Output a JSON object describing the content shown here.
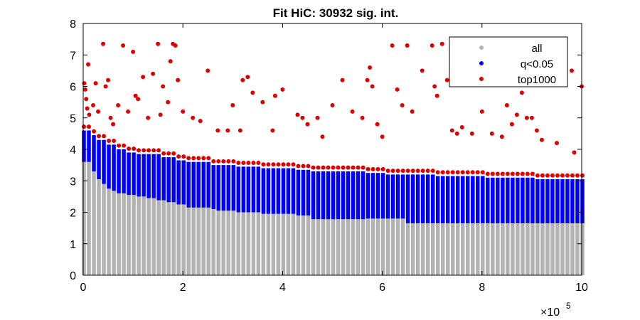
{
  "chart_data": {
    "type": "scatter",
    "title": "Fit HiC: 30932 sig. int.",
    "xlabel": "",
    "ylabel": "",
    "xlim": [
      0,
      1000000
    ],
    "ylim": [
      0,
      8
    ],
    "x_ticks": [
      0,
      200000,
      400000,
      600000,
      800000,
      1000000
    ],
    "x_tick_labels": [
      "0",
      "2",
      "4",
      "6",
      "8",
      "10"
    ],
    "x_exponent_base": "×10",
    "x_exponent_power": "5",
    "y_ticks": [
      0,
      1,
      2,
      3,
      4,
      5,
      6,
      7,
      8
    ],
    "y_tick_labels": [
      "0",
      "1",
      "2",
      "3",
      "4",
      "5",
      "6",
      "7",
      "8"
    ],
    "grid": false,
    "legend_position": "top-right",
    "series": [
      {
        "name": "all",
        "color": "#b3b3b3",
        "description_of_values": "distance bins every 10000 units from 0 to 1000000; each bin spans y from 0 up to the significance threshold",
        "bin_width": 10000,
        "values": [
          [
            0,
            3.6
          ],
          [
            10000,
            3.3
          ],
          [
            20000,
            3.05
          ],
          [
            30000,
            2.9
          ],
          [
            40000,
            2.75
          ],
          [
            50000,
            2.68
          ],
          [
            60000,
            2.6
          ],
          [
            80000,
            2.55
          ],
          [
            100000,
            2.5
          ],
          [
            120000,
            2.45
          ],
          [
            140000,
            2.38
          ],
          [
            160000,
            2.32
          ],
          [
            180000,
            2.25
          ],
          [
            200000,
            2.15
          ],
          [
            250000,
            2.1
          ],
          [
            260000,
            2.05
          ],
          [
            300000,
            2.0
          ],
          [
            350000,
            1.95
          ],
          [
            420000,
            1.9
          ],
          [
            450000,
            1.78
          ],
          [
            560000,
            1.8
          ],
          [
            640000,
            1.65
          ],
          [
            1000000,
            1.65
          ]
        ]
      },
      {
        "name": "q<0.05",
        "color": "#0000ff",
        "description_of_values": "upper edge of significant band per distance bin",
        "values": [
          [
            0,
            4.6
          ],
          [
            10000,
            4.45
          ],
          [
            20000,
            4.3
          ],
          [
            40000,
            4.15
          ],
          [
            60000,
            4.0
          ],
          [
            80000,
            3.9
          ],
          [
            100000,
            3.85
          ],
          [
            150000,
            3.75
          ],
          [
            180000,
            3.65
          ],
          [
            200000,
            3.6
          ],
          [
            250000,
            3.5
          ],
          [
            300000,
            3.45
          ],
          [
            350000,
            3.4
          ],
          [
            420000,
            3.35
          ],
          [
            450000,
            3.3
          ],
          [
            500000,
            3.3
          ],
          [
            560000,
            3.25
          ],
          [
            600000,
            3.2
          ],
          [
            700000,
            3.15
          ],
          [
            800000,
            3.1
          ],
          [
            900000,
            3.05
          ],
          [
            1000000,
            3.0
          ]
        ]
      },
      {
        "name": "top1000",
        "color": "#e00000",
        "points": [
          [
            2000,
            6.1
          ],
          [
            4000,
            5.9
          ],
          [
            6000,
            5.6
          ],
          [
            8000,
            5.3
          ],
          [
            10000,
            6.7
          ],
          [
            12000,
            5.1
          ],
          [
            20000,
            5.4
          ],
          [
            25000,
            6.1
          ],
          [
            30000,
            5.2
          ],
          [
            40000,
            7.35
          ],
          [
            45000,
            6.0
          ],
          [
            50000,
            6.2
          ],
          [
            55000,
            5.0
          ],
          [
            60000,
            4.8
          ],
          [
            70000,
            5.4
          ],
          [
            80000,
            7.3
          ],
          [
            90000,
            5.2
          ],
          [
            100000,
            7.1
          ],
          [
            105000,
            5.7
          ],
          [
            110000,
            5.6
          ],
          [
            120000,
            6.3
          ],
          [
            130000,
            5.0
          ],
          [
            140000,
            6.4
          ],
          [
            150000,
            7.35
          ],
          [
            155000,
            5.1
          ],
          [
            160000,
            6.0
          ],
          [
            170000,
            5.5
          ],
          [
            175000,
            6.8
          ],
          [
            180000,
            7.35
          ],
          [
            185000,
            7.3
          ],
          [
            190000,
            6.2
          ],
          [
            200000,
            5.2
          ],
          [
            220000,
            5.0
          ],
          [
            235000,
            4.9
          ],
          [
            250000,
            6.5
          ],
          [
            270000,
            4.6
          ],
          [
            290000,
            4.6
          ],
          [
            300000,
            5.4
          ],
          [
            315000,
            4.6
          ],
          [
            320000,
            6.2
          ],
          [
            330000,
            6.3
          ],
          [
            340000,
            5.8
          ],
          [
            360000,
            5.5
          ],
          [
            380000,
            4.6
          ],
          [
            385000,
            5.7
          ],
          [
            400000,
            5.9
          ],
          [
            430000,
            5.1
          ],
          [
            440000,
            5.0
          ],
          [
            450000,
            4.8
          ],
          [
            470000,
            5.0
          ],
          [
            480000,
            4.4
          ],
          [
            500000,
            5.4
          ],
          [
            520000,
            6.2
          ],
          [
            540000,
            5.2
          ],
          [
            560000,
            5.0
          ],
          [
            570000,
            6.2
          ],
          [
            575000,
            6.6
          ],
          [
            580000,
            6.0
          ],
          [
            590000,
            4.8
          ],
          [
            600000,
            4.4
          ],
          [
            620000,
            7.3
          ],
          [
            630000,
            5.9
          ],
          [
            640000,
            5.4
          ],
          [
            650000,
            7.3
          ],
          [
            660000,
            5.2
          ],
          [
            680000,
            6.5
          ],
          [
            700000,
            7.3
          ],
          [
            705000,
            6.0
          ],
          [
            710000,
            5.7
          ],
          [
            720000,
            7.35
          ],
          [
            730000,
            6.2
          ],
          [
            740000,
            4.6
          ],
          [
            750000,
            4.5
          ],
          [
            760000,
            4.7
          ],
          [
            780000,
            4.5
          ],
          [
            800000,
            5.2
          ],
          [
            820000,
            4.5
          ],
          [
            840000,
            4.4
          ],
          [
            850000,
            5.4
          ],
          [
            860000,
            4.8
          ],
          [
            870000,
            5.1
          ],
          [
            880000,
            5.8
          ],
          [
            890000,
            5.0
          ],
          [
            900000,
            5.0
          ],
          [
            910000,
            4.6
          ],
          [
            920000,
            4.3
          ],
          [
            950000,
            4.2
          ],
          [
            980000,
            6.5
          ],
          [
            985000,
            3.9
          ],
          [
            1000000,
            6.0
          ]
        ]
      }
    ]
  }
}
